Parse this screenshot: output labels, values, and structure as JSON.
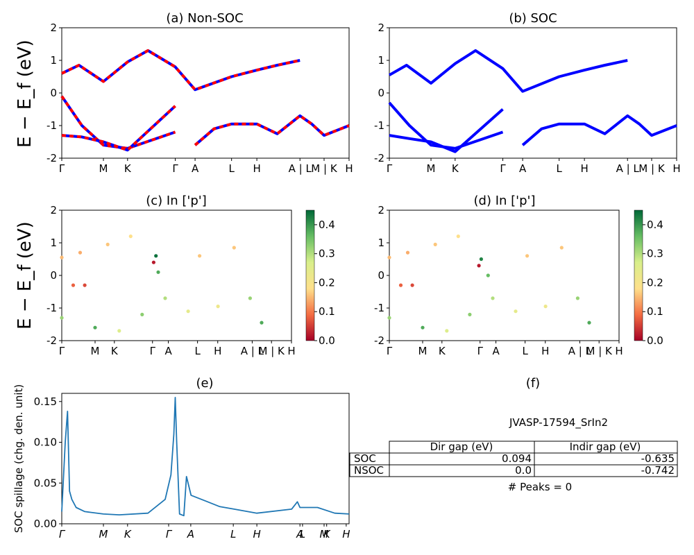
{
  "figure": {
    "id": "JVASP-17594_SrIn2",
    "peaks_text": "# Peaks = 0"
  },
  "kpath": {
    "labels": [
      "Γ",
      "M",
      "K",
      "Γ",
      "A",
      "L",
      "H",
      "A|L",
      "M|K",
      "H"
    ],
    "positions": [
      0,
      0.145,
      0.229,
      0.395,
      0.464,
      0.591,
      0.679,
      0.829,
      0.913,
      1.0
    ]
  },
  "chart_data": [
    {
      "panel": "a",
      "type": "line",
      "title": "(a) Non-SOC",
      "ylabel": "E − E_f (eV)",
      "xticks": [
        "Γ",
        "M",
        "K",
        "Γ",
        "A",
        "L",
        "H",
        "A | L",
        "M | K",
        "H"
      ],
      "ylim": [
        -2,
        2
      ],
      "yticks": [
        -2,
        -1,
        0,
        1,
        2
      ],
      "series": [
        {
          "color": "#0000ff",
          "style": "solid",
          "x": [
            0,
            0.07,
            0.145,
            0.229,
            0.395
          ],
          "y": [
            -0.1,
            -1.0,
            -1.6,
            -1.7,
            -1.2
          ]
        },
        {
          "color": "#ff0000",
          "style": "dashed",
          "x": [
            0,
            0.07,
            0.145,
            0.229,
            0.395
          ],
          "y": [
            -0.1,
            -1.0,
            -1.6,
            -1.7,
            -1.2
          ]
        },
        {
          "color": "#0000ff",
          "style": "solid",
          "x": [
            0,
            0.07,
            0.145,
            0.229,
            0.395
          ],
          "y": [
            -1.3,
            -1.35,
            -1.5,
            -1.75,
            -0.4
          ]
        },
        {
          "color": "#ff0000",
          "style": "dashed",
          "x": [
            0,
            0.07,
            0.145,
            0.229,
            0.395
          ],
          "y": [
            -1.3,
            -1.35,
            -1.5,
            -1.75,
            -0.4
          ]
        },
        {
          "color": "#0000ff",
          "style": "solid",
          "x": [
            0,
            0.06,
            0.145,
            0.229,
            0.3,
            0.395,
            0.464,
            0.591,
            0.679,
            0.75,
            0.829
          ],
          "y": [
            0.6,
            0.85,
            0.35,
            0.95,
            1.3,
            0.8,
            0.1,
            0.5,
            0.7,
            0.85,
            1.0
          ]
        },
        {
          "color": "#ff0000",
          "style": "dashed",
          "x": [
            0,
            0.06,
            0.145,
            0.229,
            0.3,
            0.395,
            0.464,
            0.591,
            0.679,
            0.75,
            0.829
          ],
          "y": [
            0.6,
            0.85,
            0.35,
            0.95,
            1.3,
            0.8,
            0.1,
            0.5,
            0.7,
            0.85,
            1.0
          ]
        },
        {
          "color": "#0000ff",
          "style": "solid",
          "x": [
            0.464,
            0.53,
            0.591,
            0.679,
            0.75,
            0.829,
            0.87,
            0.913,
            1.0
          ],
          "y": [
            -1.6,
            -1.1,
            -0.95,
            -0.95,
            -1.25,
            -0.7,
            -0.95,
            -1.3,
            -1.0
          ]
        },
        {
          "color": "#ff0000",
          "style": "dashed",
          "x": [
            0.464,
            0.53,
            0.591,
            0.679,
            0.75,
            0.829,
            0.87,
            0.913,
            1.0
          ],
          "y": [
            -1.6,
            -1.1,
            -0.95,
            -0.95,
            -1.25,
            -0.7,
            -0.95,
            -1.3,
            -1.0
          ]
        }
      ]
    },
    {
      "panel": "b",
      "type": "line",
      "title": "(b) SOC",
      "xticks": [
        "Γ",
        "M",
        "K",
        "Γ",
        "A",
        "L",
        "H",
        "A | L",
        "M | K",
        "H"
      ],
      "ylim": [
        -2,
        2
      ],
      "yticks": [
        -2,
        -1,
        0,
        1,
        2
      ],
      "series": [
        {
          "color": "#0000ff",
          "x": [
            0,
            0.07,
            0.145,
            0.229,
            0.395
          ],
          "y": [
            -0.3,
            -1.0,
            -1.6,
            -1.7,
            -1.2
          ]
        },
        {
          "color": "#0000ff",
          "x": [
            0,
            0.07,
            0.145,
            0.229,
            0.395
          ],
          "y": [
            -1.3,
            -1.4,
            -1.5,
            -1.8,
            -0.5
          ]
        },
        {
          "color": "#0000ff",
          "x": [
            0,
            0.06,
            0.145,
            0.229,
            0.3,
            0.395,
            0.464,
            0.591,
            0.679,
            0.75,
            0.829
          ],
          "y": [
            0.55,
            0.85,
            0.3,
            0.9,
            1.3,
            0.75,
            0.05,
            0.5,
            0.7,
            0.85,
            1.0
          ]
        },
        {
          "color": "#0000ff",
          "x": [
            0.464,
            0.53,
            0.591,
            0.679,
            0.75,
            0.829,
            0.87,
            0.913,
            1.0
          ],
          "y": [
            -1.6,
            -1.1,
            -0.95,
            -0.95,
            -1.25,
            -0.7,
            -0.95,
            -1.3,
            -1.0
          ]
        }
      ]
    },
    {
      "panel": "c",
      "type": "scatter",
      "title": "(c)  In ['p']",
      "ylabel": "E − E_f (eV)",
      "xticks": [
        "Γ",
        "M",
        "K",
        "Γ",
        "A",
        "L",
        "H",
        "A | L",
        "M | K",
        "H"
      ],
      "ylim": [
        -2,
        2
      ],
      "yticks": [
        -2,
        -1,
        0,
        1,
        2
      ],
      "colorbar": {
        "range": [
          0,
          0.45
        ],
        "ticks": [
          0.0,
          0.1,
          0.2,
          0.3,
          0.4
        ]
      },
      "points": [
        {
          "x": 0.0,
          "y": 0.55,
          "v": 0.15
        },
        {
          "x": 0.08,
          "y": 0.7,
          "v": 0.14
        },
        {
          "x": 0.2,
          "y": 0.95,
          "v": 0.16
        },
        {
          "x": 0.3,
          "y": 1.2,
          "v": 0.18
        },
        {
          "x": 0.6,
          "y": 0.6,
          "v": 0.16
        },
        {
          "x": 0.75,
          "y": 0.85,
          "v": 0.16
        },
        {
          "x": 0.05,
          "y": -0.3,
          "v": 0.08
        },
        {
          "x": 0.1,
          "y": -0.3,
          "v": 0.06
        },
        {
          "x": 0.4,
          "y": 0.4,
          "v": 0.02
        },
        {
          "x": 0.41,
          "y": 0.6,
          "v": 0.44
        },
        {
          "x": 0.42,
          "y": 0.1,
          "v": 0.38
        },
        {
          "x": 0.0,
          "y": -1.3,
          "v": 0.32
        },
        {
          "x": 0.145,
          "y": -1.6,
          "v": 0.38
        },
        {
          "x": 0.25,
          "y": -1.7,
          "v": 0.26
        },
        {
          "x": 0.35,
          "y": -1.2,
          "v": 0.33
        },
        {
          "x": 0.45,
          "y": -0.7,
          "v": 0.3
        },
        {
          "x": 0.55,
          "y": -1.1,
          "v": 0.24
        },
        {
          "x": 0.68,
          "y": -0.95,
          "v": 0.22
        },
        {
          "x": 0.82,
          "y": -0.7,
          "v": 0.32
        },
        {
          "x": 0.87,
          "y": -1.45,
          "v": 0.38
        }
      ]
    },
    {
      "panel": "d",
      "type": "scatter",
      "title": "(d) In ['p']",
      "xticks": [
        "Γ",
        "M",
        "K",
        "Γ",
        "A",
        "L",
        "H",
        "A | L",
        "M | K",
        "H"
      ],
      "ylim": [
        -2,
        2
      ],
      "yticks": [
        -2,
        -1,
        0,
        1,
        2
      ],
      "colorbar": {
        "range": [
          0,
          0.45
        ],
        "ticks": [
          0.0,
          0.1,
          0.2,
          0.3,
          0.4
        ]
      },
      "points": [
        {
          "x": 0.0,
          "y": 0.55,
          "v": 0.15
        },
        {
          "x": 0.08,
          "y": 0.7,
          "v": 0.14
        },
        {
          "x": 0.2,
          "y": 0.95,
          "v": 0.16
        },
        {
          "x": 0.3,
          "y": 1.2,
          "v": 0.18
        },
        {
          "x": 0.6,
          "y": 0.6,
          "v": 0.16
        },
        {
          "x": 0.75,
          "y": 0.85,
          "v": 0.16
        },
        {
          "x": 0.05,
          "y": -0.3,
          "v": 0.08
        },
        {
          "x": 0.1,
          "y": -0.3,
          "v": 0.06
        },
        {
          "x": 0.39,
          "y": 0.3,
          "v": 0.02
        },
        {
          "x": 0.4,
          "y": 0.5,
          "v": 0.42
        },
        {
          "x": 0.43,
          "y": 0.0,
          "v": 0.36
        },
        {
          "x": 0.0,
          "y": -1.3,
          "v": 0.32
        },
        {
          "x": 0.145,
          "y": -1.6,
          "v": 0.38
        },
        {
          "x": 0.25,
          "y": -1.7,
          "v": 0.26
        },
        {
          "x": 0.35,
          "y": -1.2,
          "v": 0.33
        },
        {
          "x": 0.45,
          "y": -0.7,
          "v": 0.3
        },
        {
          "x": 0.55,
          "y": -1.1,
          "v": 0.24
        },
        {
          "x": 0.68,
          "y": -0.95,
          "v": 0.22
        },
        {
          "x": 0.82,
          "y": -0.7,
          "v": 0.32
        },
        {
          "x": 0.87,
          "y": -1.45,
          "v": 0.38
        }
      ]
    },
    {
      "panel": "e",
      "type": "line",
      "title": "(e)",
      "ylabel": "SOC spillage (chg. den. unit)",
      "xticks": [
        "Γ",
        "M",
        "K",
        "Γ",
        "A",
        "L",
        "H",
        "A",
        "L",
        "M",
        "K",
        "H"
      ],
      "ylim": [
        0,
        0.16
      ],
      "yticks": [
        0.0,
        0.05,
        0.1,
        0.15
      ],
      "yticklabels": [
        "0.00",
        "0.05",
        "0.10",
        "0.15"
      ],
      "series": [
        {
          "color": "#1f77b4",
          "x": [
            0,
            0.012,
            0.02,
            0.027,
            0.035,
            0.05,
            0.08,
            0.1,
            0.145,
            0.2,
            0.3,
            0.36,
            0.38,
            0.39,
            0.395,
            0.4,
            0.41,
            0.425,
            0.434,
            0.45,
            0.5,
            0.55,
            0.6,
            0.679,
            0.8,
            0.82,
            0.829,
            0.89,
            0.95,
            1.0
          ],
          "y": [
            0.015,
            0.1,
            0.138,
            0.04,
            0.03,
            0.02,
            0.015,
            0.014,
            0.012,
            0.011,
            0.013,
            0.03,
            0.06,
            0.11,
            0.155,
            0.1,
            0.012,
            0.01,
            0.058,
            0.035,
            0.028,
            0.021,
            0.018,
            0.013,
            0.018,
            0.027,
            0.02,
            0.02,
            0.013,
            0.012
          ]
        }
      ]
    },
    {
      "panel": "f",
      "type": "table",
      "title": "(f)",
      "columns": [
        "Dir gap (eV)",
        "Indir gap (eV)"
      ],
      "rows": [
        {
          "label": "SOC",
          "values": [
            "0.094",
            "-0.635"
          ]
        },
        {
          "label": "NSOC",
          "values": [
            "0.0",
            "-0.742"
          ]
        }
      ]
    }
  ]
}
